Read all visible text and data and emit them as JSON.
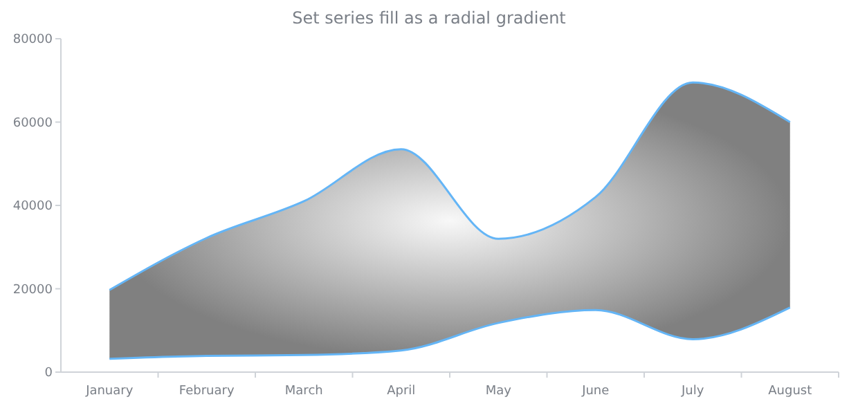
{
  "chart_data": {
    "type": "area",
    "title": "Set series fill as a radial gradient",
    "categories": [
      "January",
      "February",
      "March",
      "April",
      "May",
      "June",
      "July",
      "August"
    ],
    "series": [
      {
        "color": "#64b5f6",
        "values": [
          19700,
          32200,
          41000,
          53500,
          32000,
          42000,
          69500,
          60000
        ]
      },
      {
        "type": "line",
        "color": "#64b5f6",
        "values": [
          3200,
          3900,
          4100,
          5200,
          11800,
          14900,
          7900,
          15500
        ]
      }
    ],
    "ylim": [
      0,
      80000
    ],
    "yticks": [
      0,
      20000,
      40000,
      60000,
      80000
    ],
    "grid": false
  }
}
